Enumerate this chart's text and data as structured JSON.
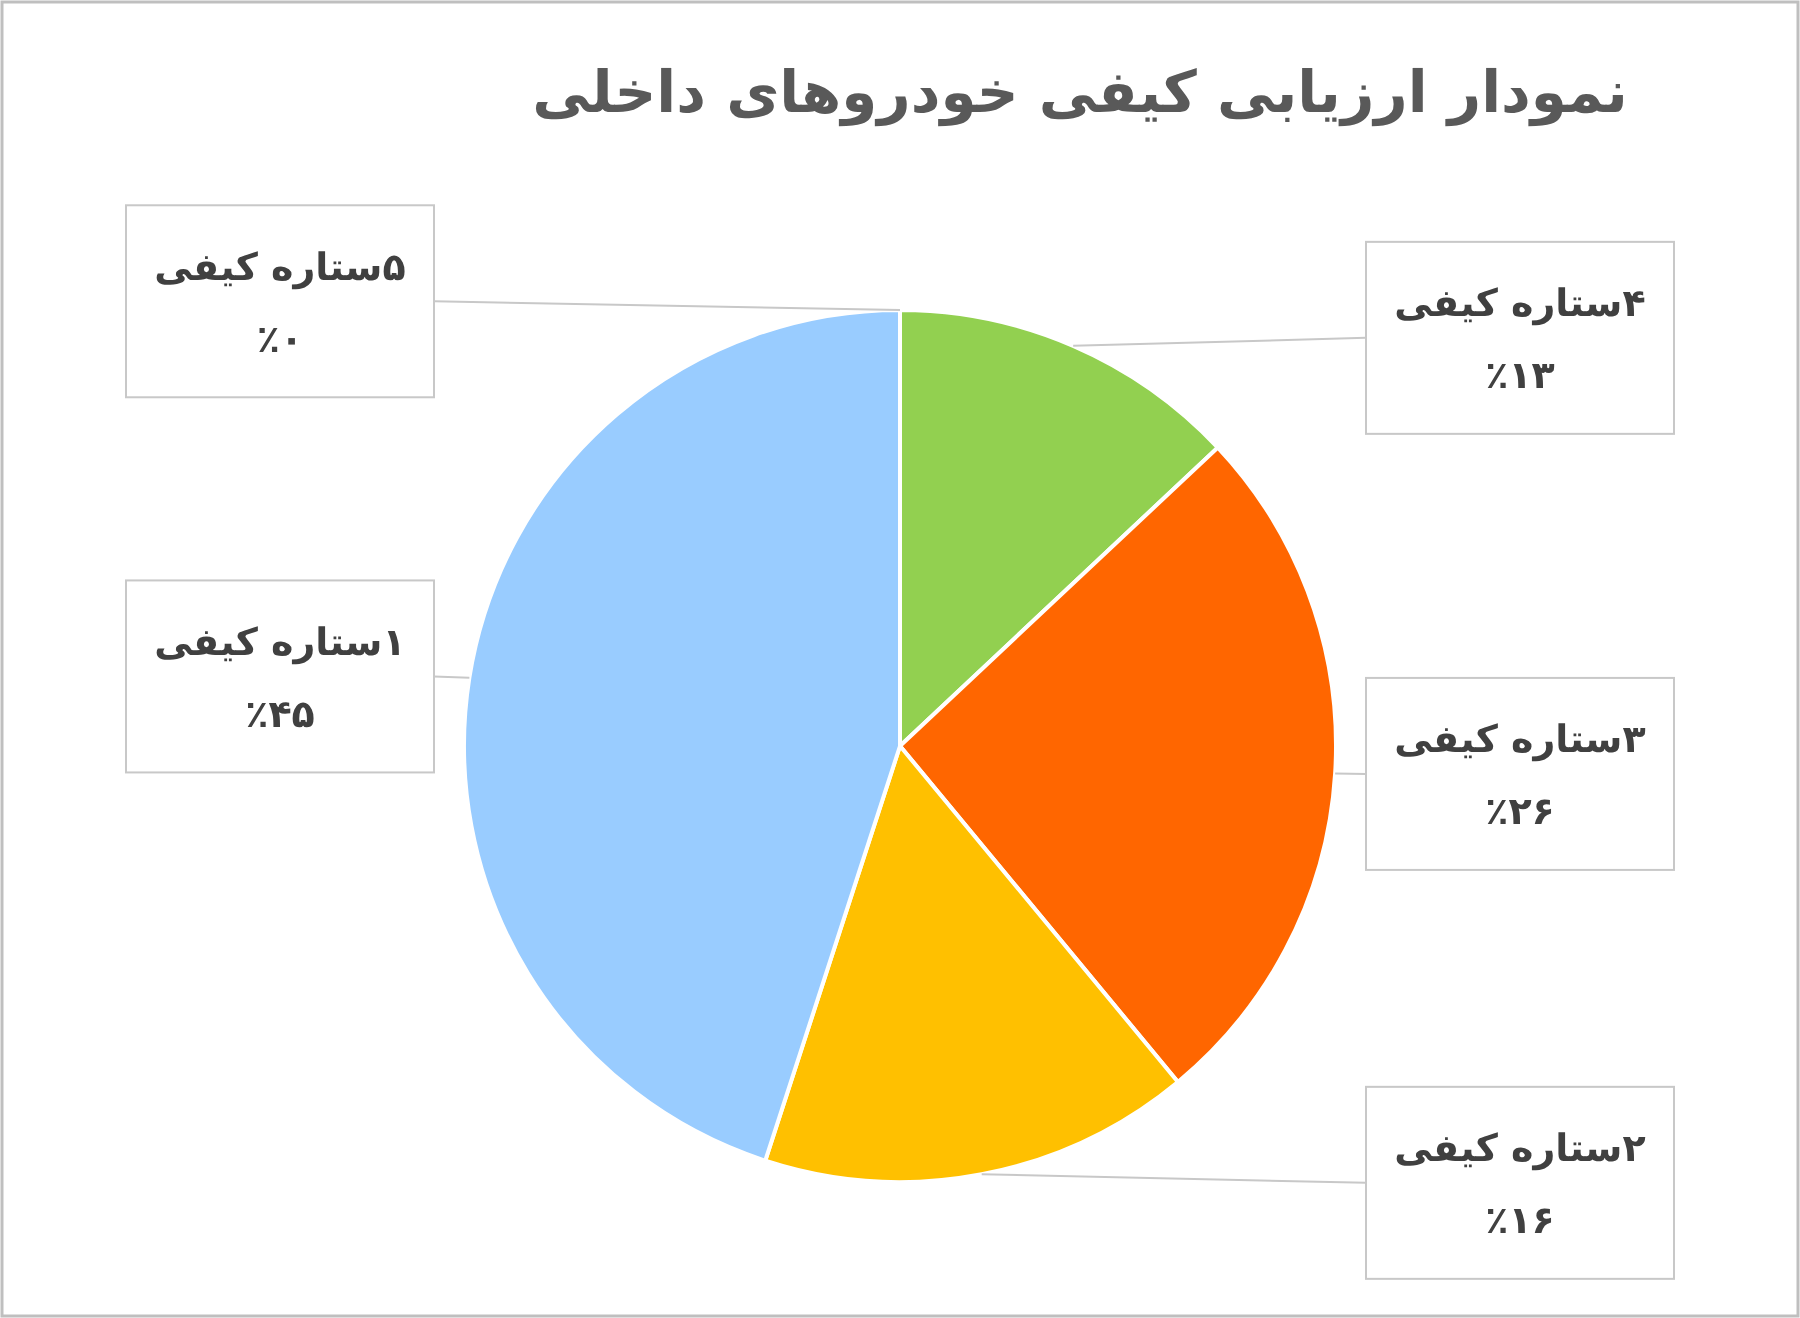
{
  "chart_data": {
    "type": "pie",
    "title": "نمودار ارزیابی کیفی خودروهای داخلی",
    "categories": [
      "۵ستاره کیفی",
      "۴ستاره کیفی",
      "۳ستاره کیفی",
      "۲ستاره کیفی",
      "۱ستاره کیفی"
    ],
    "values": [
      0,
      13,
      26,
      16,
      45
    ],
    "value_labels": [
      "٪۰",
      "٪۱۳",
      "٪۲۶",
      "٪۱۶",
      "٪۴۵"
    ],
    "colors": [
      null,
      "#92d050",
      "#ff6600",
      "#ffc000",
      "#99ccff"
    ]
  }
}
